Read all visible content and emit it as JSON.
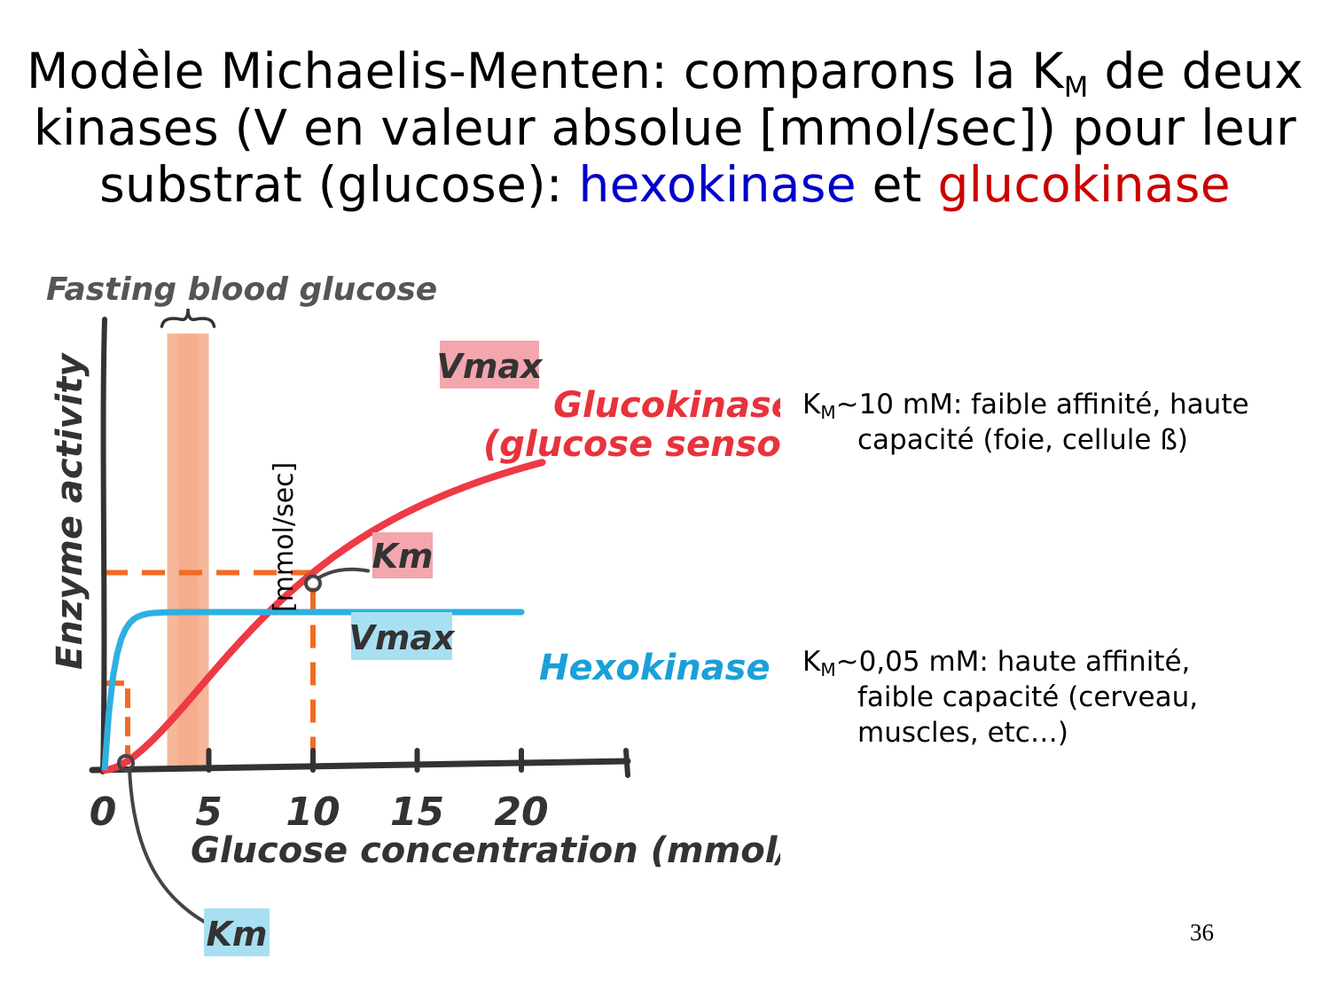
{
  "title": {
    "line1_pre": "Modèle Michaelis-Menten: comparons la K",
    "line1_sub": "M",
    "line1_post": " de deux",
    "line2": "kinases (V en valeur absolue [mmol/sec]) pour leur",
    "line3_pre": "substrat (glucose): ",
    "hexo_word": "hexokinase",
    "and_word": " et ",
    "gluco_word": "glucokinase",
    "hexo_color": "#0000cc",
    "gluco_color": "#cc0000"
  },
  "chart_data": {
    "type": "line",
    "xlabel": "Glucose concentration (mmol/l)",
    "ylabel": "Enzyme activity",
    "unit_annotation": "[mmol/sec]",
    "xticks": [
      "0",
      "5",
      "10",
      "15",
      "20"
    ],
    "xlim": [
      0,
      25
    ],
    "ylim": [
      0,
      1.05
    ],
    "band_label": "Fasting blood glucose",
    "band_range": [
      3.0,
      5.0
    ],
    "band_color": "#f4a582",
    "series": [
      {
        "name": "Glucokinase",
        "subname": "(glucose sensor)",
        "color": "#ee3a45",
        "label_color": "#e8323c",
        "vmax": 1.0,
        "km": 10,
        "hill": 1.7,
        "vmax_label": "Vmax",
        "km_label": "Km",
        "box_color": "#f3a6ae"
      },
      {
        "name": "Hexokinase",
        "subname": "",
        "color": "#2eb0e0",
        "label_color": "#1aa0d8",
        "vmax": 0.4,
        "km": 0.05,
        "hill": 1,
        "vmax_label": "Vmax",
        "km_label": "Km",
        "box_color": "#a8e0f2"
      }
    ],
    "dash_color": "#f26b22"
  },
  "notes": {
    "glucokinase": {
      "k": "K",
      "sub": "M",
      "line1": "~10 mM: faible affinité, haute",
      "line2": "capacité (foie, cellule ß)"
    },
    "hexokinase": {
      "k": "K",
      "sub": "M",
      "line1": "~0,05 mM: haute affinité,",
      "line2": "faible capacité (cerveau,",
      "line3": "muscles, etc…)"
    }
  },
  "page_number": "36"
}
